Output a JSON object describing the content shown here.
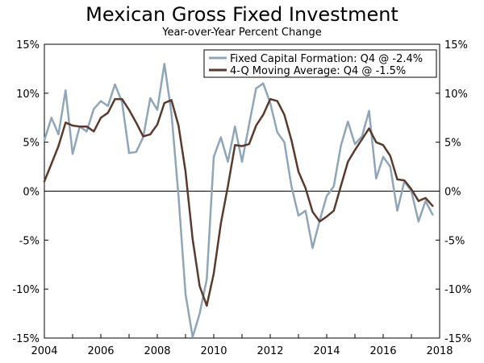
{
  "chart_data": {
    "type": "line",
    "title": "Mexican Gross Fixed Investment",
    "subtitle": "Year-over-Year Percent Change",
    "xlabel": "",
    "ylabel": "",
    "xlim": [
      2004,
      2018
    ],
    "ylim": [
      -15,
      15
    ],
    "x_ticks": [
      "2004",
      "2006",
      "2008",
      "2010",
      "2012",
      "2014",
      "2016",
      "2018"
    ],
    "y_ticks": [
      "15%",
      "10%",
      "5%",
      "0%",
      "-5%",
      "-10%",
      "-15%"
    ],
    "series": [
      {
        "name": "Fixed Capital Formation: Q4 @ -2.4%",
        "color": "#8fa5b8",
        "x": [
          2004.0,
          2004.25,
          2004.5,
          2004.75,
          2005.0,
          2005.25,
          2005.5,
          2005.75,
          2006.0,
          2006.25,
          2006.5,
          2006.75,
          2007.0,
          2007.25,
          2007.5,
          2007.75,
          2008.0,
          2008.25,
          2008.5,
          2008.75,
          2009.0,
          2009.25,
          2009.5,
          2009.75,
          2010.0,
          2010.25,
          2010.5,
          2010.75,
          2011.0,
          2011.25,
          2011.5,
          2011.75,
          2012.0,
          2012.25,
          2012.5,
          2012.75,
          2013.0,
          2013.25,
          2013.5,
          2013.75,
          2014.0,
          2014.25,
          2014.5,
          2014.75,
          2015.0,
          2015.25,
          2015.5,
          2015.75,
          2016.0,
          2016.25,
          2016.5,
          2016.75,
          2017.0,
          2017.25,
          2017.5,
          2017.75
        ],
        "values": [
          5.2,
          7.5,
          5.8,
          10.3,
          3.8,
          6.6,
          6.1,
          8.4,
          9.2,
          8.7,
          10.9,
          9.1,
          3.9,
          4.0,
          5.5,
          9.5,
          8.3,
          13.0,
          8.0,
          -0.5,
          -10.5,
          -14.9,
          -12.5,
          -9.0,
          3.5,
          5.5,
          3.0,
          6.6,
          3.0,
          6.8,
          10.5,
          11.0,
          9.0,
          6.0,
          5.0,
          0.5,
          -2.5,
          -2.0,
          -5.8,
          -3.0,
          -0.5,
          0.5,
          4.6,
          7.1,
          4.8,
          5.6,
          8.2,
          1.3,
          3.5,
          2.5,
          -2.0,
          1.0,
          0.0,
          -3.1,
          -1.0,
          -2.4
        ]
      },
      {
        "name": "4-Q Moving Average: Q4 @ -1.5%",
        "color": "#5b3a2e",
        "x": [
          2004.0,
          2004.25,
          2004.5,
          2004.75,
          2005.0,
          2005.25,
          2005.5,
          2005.75,
          2006.0,
          2006.25,
          2006.5,
          2006.75,
          2007.0,
          2007.25,
          2007.5,
          2007.75,
          2008.0,
          2008.25,
          2008.5,
          2008.75,
          2009.0,
          2009.25,
          2009.5,
          2009.75,
          2010.0,
          2010.25,
          2010.5,
          2010.75,
          2011.0,
          2011.25,
          2011.5,
          2011.75,
          2012.0,
          2012.25,
          2012.5,
          2012.75,
          2013.0,
          2013.25,
          2013.5,
          2013.75,
          2014.0,
          2014.25,
          2014.5,
          2014.75,
          2015.0,
          2015.25,
          2015.5,
          2015.75,
          2016.0,
          2016.25,
          2016.5,
          2016.75,
          2017.0,
          2017.25,
          2017.5,
          2017.75
        ],
        "values": [
          1.0,
          2.8,
          4.6,
          7.0,
          6.7,
          6.6,
          6.6,
          6.1,
          7.5,
          8.0,
          9.4,
          9.4,
          8.3,
          7.0,
          5.6,
          5.8,
          6.8,
          9.0,
          9.3,
          6.7,
          2.0,
          -4.9,
          -9.7,
          -11.7,
          -8.4,
          -3.3,
          0.5,
          4.7,
          4.6,
          4.8,
          6.7,
          7.8,
          9.4,
          9.2,
          7.8,
          5.2,
          2.0,
          0.3,
          -2.1,
          -3.1,
          -2.6,
          -2.0,
          0.5,
          3.0,
          4.2,
          5.3,
          6.4,
          5.0,
          4.7,
          3.6,
          1.2,
          1.1,
          0.2,
          -1.0,
          -0.7,
          -1.5
        ]
      }
    ],
    "legend": "top-right"
  }
}
